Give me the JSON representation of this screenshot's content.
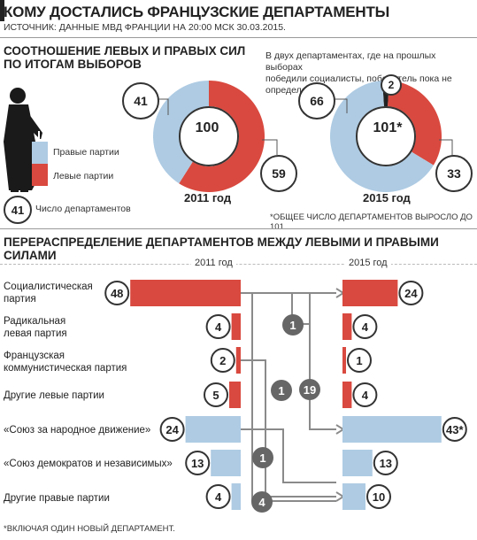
{
  "header": {
    "title": "КОМУ ДОСТАЛИСЬ ФРАНЦУЗСКИЕ ДЕПАРТАМЕНТЫ",
    "source": "ИСТОЧНИК: ДАННЫЕ МВД ФРАНЦИИ НА 20:00 МСК 30.03.2015."
  },
  "section1": {
    "title_line1": "СООТНОШЕНИЕ ЛЕВЫХ И ПРАВЫХ СИЛ",
    "title_line2": "ПО ИТОГАМ ВЫБОРОВ",
    "note_line1": "В двух департаментах, где на прошлых выборах",
    "note_line2": "победили социалисты, победитель пока не определен",
    "legend": {
      "right": "Правые партии",
      "left": "Левые партии",
      "count_value": "41",
      "count": "Число департаментов"
    },
    "footnote": "*ОБЩЕЕ ЧИСЛО ДЕПАРТАМЕНТОВ ВЫРОСЛО ДО 101."
  },
  "section2": {
    "title": "ПЕРЕРАСПРЕДЕЛЕНИЕ ДЕПАРТАМЕНТОВ МЕЖДУ ЛЕВЫМИ И ПРАВЫМИ СИЛАМИ",
    "year_left": "2011 год",
    "year_right": "2015 год",
    "footnote": "*ВКЛЮЧАЯ ОДИН НОВЫЙ ДЕПАРТАМЕНТ."
  },
  "colors": {
    "left": "#d9493f",
    "right": "#aecbe3",
    "undecided": "#222222",
    "flow": "#8a8a8a",
    "flow_badge": "#666666"
  },
  "chart_data": [
    {
      "type": "pie",
      "style": "donut",
      "year": "2011 год",
      "total": "100",
      "slices": [
        {
          "name": "Правые партии",
          "value": 41,
          "label": "41"
        },
        {
          "name": "Левые партии",
          "value": 59,
          "label": "59"
        }
      ]
    },
    {
      "type": "pie",
      "style": "donut",
      "year": "2015 год",
      "total": "101*",
      "slices": [
        {
          "name": "Правые партии",
          "value": 66,
          "label": "66"
        },
        {
          "name": "Левые партии",
          "value": 33,
          "label": "33"
        },
        {
          "name": "undecided",
          "value": 2,
          "label": "2"
        }
      ]
    },
    {
      "type": "bar",
      "series_years": [
        "2011 год",
        "2015 год"
      ],
      "rows": [
        {
          "party_line1": "Социалистическая",
          "party_line2": "партия",
          "side": "left",
          "v2011": 48,
          "v2011_label": "48",
          "v2015": 24,
          "v2015_label": "24"
        },
        {
          "party_line1": "Радикальная",
          "party_line2": "левая партия",
          "side": "left",
          "v2011": 4,
          "v2011_label": "4",
          "v2015": 4,
          "v2015_label": "4"
        },
        {
          "party_line1": "Французская",
          "party_line2": "коммунистическая партия",
          "side": "left",
          "v2011": 2,
          "v2011_label": "2",
          "v2015": 1,
          "v2015_label": "1"
        },
        {
          "party_line1": "Другие левые партии",
          "party_line2": "",
          "side": "left",
          "v2011": 5,
          "v2011_label": "5",
          "v2015": 4,
          "v2015_label": "4"
        },
        {
          "party_line1": "«Союз за народное движение»",
          "party_line2": "",
          "side": "right",
          "v2011": 24,
          "v2011_label": "24",
          "v2015": 43,
          "v2015_label": "43*"
        },
        {
          "party_line1": "«Союз демократов и независимых»",
          "party_line2": "",
          "side": "right",
          "v2011": 13,
          "v2011_label": "13",
          "v2015": 13,
          "v2015_label": "13"
        },
        {
          "party_line1": "Другие правые партии",
          "party_line2": "",
          "side": "right",
          "v2011": 4,
          "v2011_label": "4",
          "v2015": 10,
          "v2015_label": "10"
        }
      ],
      "flows": [
        {
          "from": "Социалистическая партия",
          "to": "Социалистическая партия",
          "value": "1"
        },
        {
          "from": "Социалистическая партия",
          "to": "«Союз за народное движение»",
          "value": "19"
        },
        {
          "from": "Французская коммунистическая партия",
          "to": "Другие правые партии",
          "value": "1"
        },
        {
          "from": "«Союз за народное движение»",
          "to": "Другие правые партии",
          "value": "1"
        },
        {
          "from": "Социалистическая партия",
          "to": "Другие правые партии",
          "value": "4"
        }
      ]
    }
  ]
}
